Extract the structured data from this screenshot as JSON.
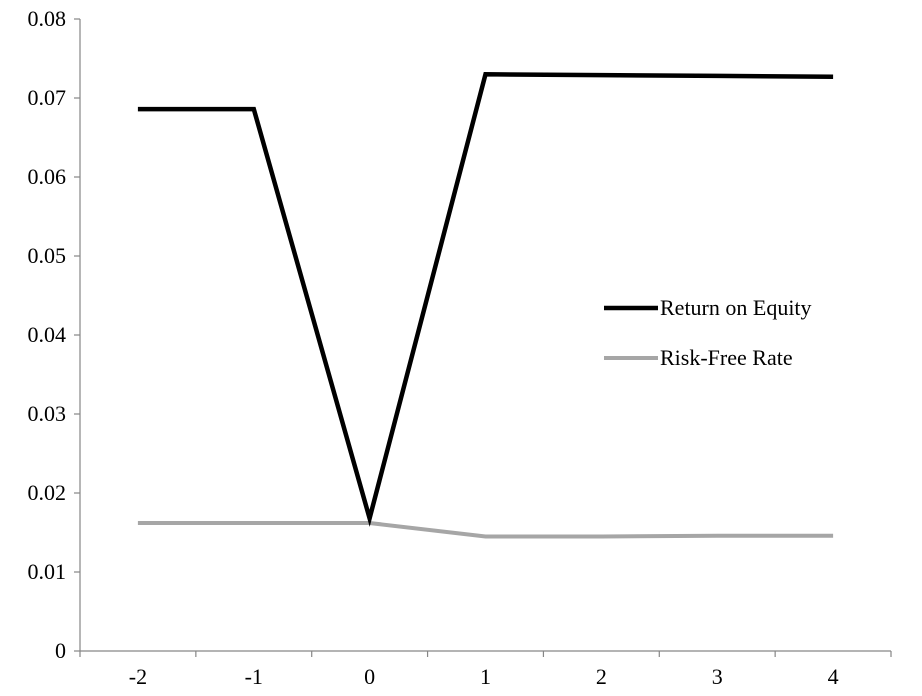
{
  "chart_data": {
    "type": "line",
    "title": "",
    "xlabel": "",
    "ylabel": "",
    "x": [
      -2,
      -1,
      0,
      1,
      2,
      3,
      4
    ],
    "x_tick_labels": [
      "-2",
      "-1",
      "0",
      "1",
      "2",
      "3",
      "4"
    ],
    "ylim": [
      0,
      0.08
    ],
    "y_ticks": [
      0,
      0.01,
      0.02,
      0.03,
      0.04,
      0.05,
      0.06,
      0.07,
      0.08
    ],
    "y_tick_labels": [
      "0",
      "0.01",
      "0.02",
      "0.03",
      "0.04",
      "0.05",
      "0.06",
      "0.07",
      "0.08"
    ],
    "grid": false,
    "legend_position": "right",
    "series": [
      {
        "name": "Return on Equity",
        "color": "#000000",
        "values": [
          0.0686,
          0.0686,
          0.0168,
          0.073,
          0.0729,
          0.0728,
          0.0727
        ]
      },
      {
        "name": "Risk-Free Rate",
        "color": "#a6a6a6",
        "values": [
          0.0162,
          0.0162,
          0.0162,
          0.0145,
          0.0145,
          0.0146,
          0.0146
        ]
      }
    ]
  }
}
